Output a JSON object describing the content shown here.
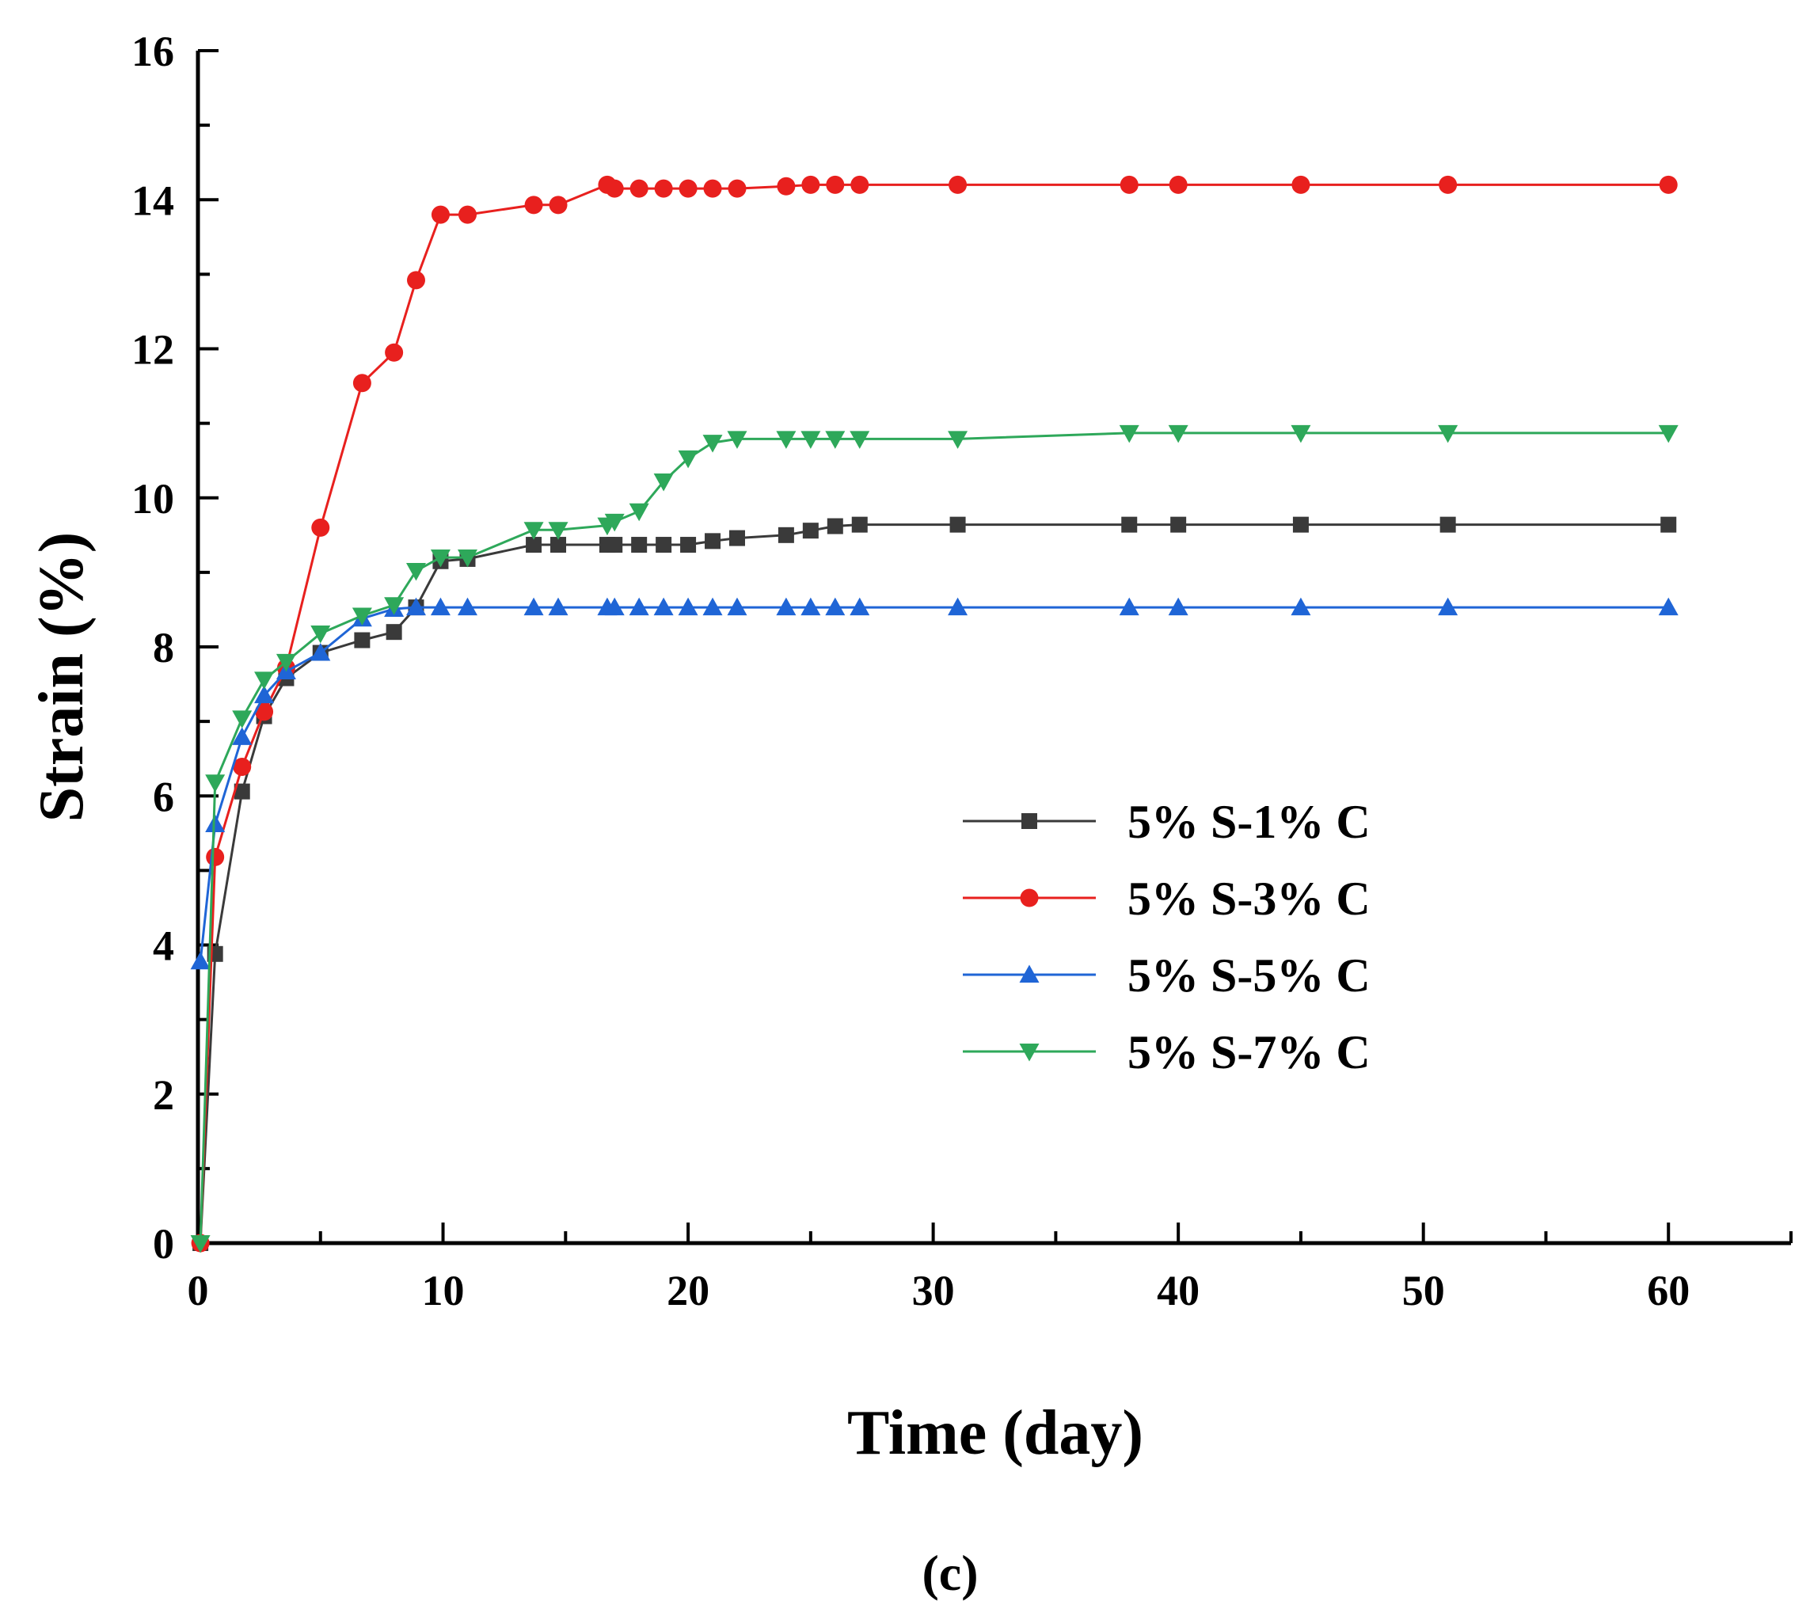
{
  "chart_data": {
    "type": "line",
    "title": "",
    "xlabel": "Time (day)",
    "ylabel": "Strain (%)",
    "caption": "(c)",
    "xlim": [
      0,
      65
    ],
    "ylim": [
      0,
      16
    ],
    "xticks": [
      0,
      10,
      20,
      30,
      40,
      50,
      60
    ],
    "yticks": [
      0,
      2,
      4,
      6,
      8,
      10,
      12,
      14,
      16
    ],
    "xtick_labels": [
      "0",
      "10",
      "20",
      "30",
      "40",
      "50",
      "60"
    ],
    "ytick_labels": [
      "0",
      "2",
      "4",
      "6",
      "8",
      "10",
      "12",
      "14",
      "16"
    ],
    "legend_position": "center-right",
    "series": [
      {
        "name": "5% S-1% C",
        "color": "#3a3a3a",
        "marker": "square",
        "x": [
          0.1,
          0.7,
          1.8,
          2.7,
          3.6,
          5,
          6.7,
          8,
          8.9,
          9.9,
          11,
          13.7,
          14.7,
          16.7,
          17,
          18,
          19,
          20,
          21,
          22,
          24,
          25,
          26,
          27,
          31,
          38,
          40,
          45,
          51,
          60
        ],
        "y": [
          0,
          3.88,
          6.06,
          7.07,
          7.58,
          7.92,
          8.09,
          8.2,
          8.53,
          9.15,
          9.18,
          9.37,
          9.37,
          9.37,
          9.37,
          9.37,
          9.37,
          9.37,
          9.42,
          9.46,
          9.5,
          9.56,
          9.62,
          9.64,
          9.64,
          9.64,
          9.64,
          9.64,
          9.64,
          9.64
        ]
      },
      {
        "name": "5% S-3% C",
        "color": "#e8201e",
        "marker": "circle",
        "x": [
          0.1,
          0.7,
          1.8,
          2.7,
          3.6,
          5,
          6.7,
          8,
          8.9,
          9.9,
          11,
          13.7,
          14.7,
          16.7,
          17,
          18,
          19,
          20,
          21,
          22,
          24,
          25,
          26,
          27,
          31,
          38,
          40,
          45,
          51,
          60
        ],
        "y": [
          0,
          5.18,
          6.39,
          7.13,
          7.72,
          9.6,
          11.54,
          11.95,
          12.92,
          13.8,
          13.8,
          13.93,
          13.93,
          14.2,
          14.15,
          14.15,
          14.15,
          14.15,
          14.15,
          14.15,
          14.18,
          14.2,
          14.2,
          14.2,
          14.2,
          14.2,
          14.2,
          14.2,
          14.2,
          14.2
        ]
      },
      {
        "name": "5% S-5% C",
        "color": "#1f65d6",
        "marker": "triangle-up",
        "x": [
          0.1,
          0.7,
          1.8,
          2.7,
          3.6,
          5,
          6.7,
          8,
          8.9,
          9.9,
          11,
          13.7,
          14.7,
          16.7,
          17,
          18,
          19,
          20,
          21,
          22,
          24,
          25,
          26,
          27,
          31,
          38,
          40,
          45,
          51,
          60
        ],
        "y": [
          3.78,
          5.62,
          6.79,
          7.35,
          7.67,
          7.92,
          8.38,
          8.51,
          8.53,
          8.53,
          8.53,
          8.53,
          8.53,
          8.53,
          8.53,
          8.53,
          8.53,
          8.53,
          8.53,
          8.53,
          8.53,
          8.53,
          8.53,
          8.53,
          8.53,
          8.53,
          8.53,
          8.53,
          8.53,
          8.53
        ]
      },
      {
        "name": "5% S-7% C",
        "color": "#2ea85a",
        "marker": "triangle-down",
        "x": [
          0.1,
          0.7,
          1.8,
          2.7,
          3.6,
          5,
          6.7,
          8,
          8.9,
          9.9,
          11,
          13.7,
          14.7,
          16.7,
          17,
          18,
          19,
          20,
          21,
          22,
          24,
          25,
          26,
          27,
          31,
          38,
          40,
          45,
          51,
          60
        ],
        "y": [
          0,
          6.18,
          7.04,
          7.56,
          7.8,
          8.18,
          8.42,
          8.56,
          9.02,
          9.2,
          9.2,
          9.57,
          9.57,
          9.63,
          9.68,
          9.82,
          10.22,
          10.53,
          10.74,
          10.79,
          10.79,
          10.79,
          10.79,
          10.79,
          10.79,
          10.87,
          10.87,
          10.87,
          10.87,
          10.87
        ]
      }
    ]
  }
}
